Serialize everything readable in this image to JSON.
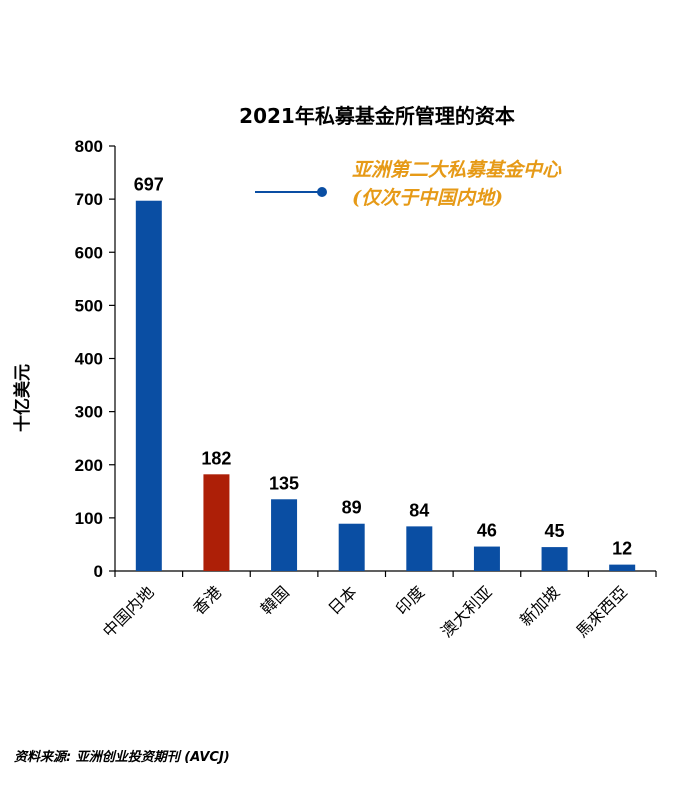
{
  "chart_data": {
    "type": "bar",
    "title": "2021年私募基金所管理的资本",
    "ylabel": "十亿美元",
    "xlabel": "",
    "ylim": [
      0,
      800
    ],
    "yticks": [
      0,
      100,
      200,
      300,
      400,
      500,
      600,
      700,
      800
    ],
    "categories": [
      "中国内地",
      "香港",
      "韓国",
      "日本",
      "印度",
      "澳大利亚",
      "新加坡",
      "馬來西亞"
    ],
    "values": [
      697,
      182,
      135,
      89,
      84,
      46,
      45,
      12
    ],
    "grid": false,
    "annotation": {
      "line1": "亚洲第二大私募基金中心",
      "line2": "(仅次于中国内地)",
      "target_category": "香港"
    },
    "source": "资料来源: 亚洲创业投资期刊 (AVCJ)"
  },
  "colors": {
    "default_bar": "#0a4ea3",
    "highlight_bar": "#ad1f07",
    "highlight_category": "香港",
    "annotation": "#e69a17",
    "connector": "#0a4ea3"
  }
}
